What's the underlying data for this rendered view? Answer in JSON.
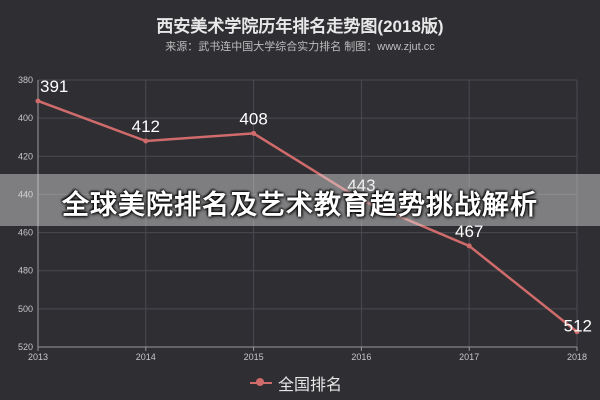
{
  "banner": {
    "text": "全球美院排名及艺术教育趋势挑战解析"
  },
  "chart_data": {
    "type": "line",
    "title": "西安美术学院历年排名走势图(2018版)",
    "subtitle": "来源：武书连中国大学综合实力排名 制图：www.zjut.cc",
    "x": [
      "2013",
      "2014",
      "2015",
      "2016",
      "2017",
      "2018"
    ],
    "yticks": [
      "380",
      "400",
      "420",
      "440",
      "460",
      "480",
      "500",
      "520"
    ],
    "ylim": [
      380,
      520
    ],
    "y_inverted": true,
    "grid": true,
    "legend_position": "bottom",
    "series": [
      {
        "name": "全国排名",
        "values": [
          391,
          412,
          408,
          443,
          467,
          512
        ],
        "labels": [
          "391",
          "412",
          "408",
          "443",
          "467",
          "512"
        ],
        "color": "#d06b6b"
      }
    ]
  }
}
